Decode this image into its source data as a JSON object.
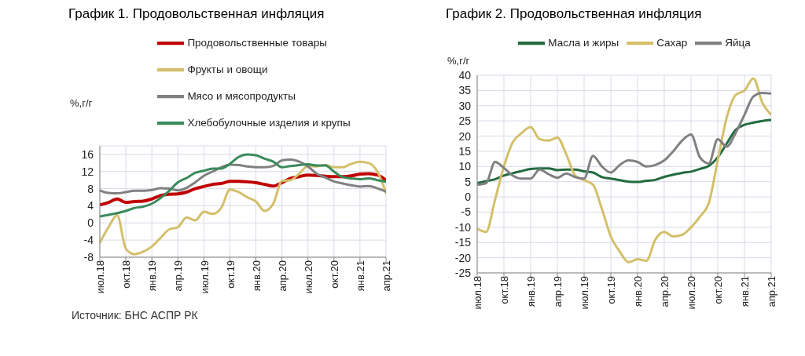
{
  "chart_data": [
    {
      "type": "line",
      "title": "График 1. Продовольственная инфляция",
      "ylabel": "%,г/г",
      "categories": [
        "июл.18",
        null,
        null,
        "окт.18",
        null,
        null,
        "янв.19",
        null,
        null,
        "апр.19",
        null,
        null,
        "июл.19",
        null,
        null,
        "окт.19",
        null,
        null,
        "янв.20",
        null,
        null,
        "апр.20",
        null,
        null,
        "июл.20",
        null,
        null,
        "окт.20",
        null,
        null,
        "янв.21",
        null,
        null,
        "апр.21"
      ],
      "series": [
        {
          "name": "Продовольственные товары",
          "color": "#c00000",
          "values": [
            4.2,
            4.8,
            5.6,
            4.8,
            5.0,
            5.1,
            5.6,
            6.4,
            6.7,
            6.8,
            7.2,
            8.0,
            8.5,
            9.0,
            9.2,
            9.7,
            9.7,
            9.6,
            9.4,
            9.0,
            8.6,
            9.4,
            10.4,
            10.8,
            11.2,
            11.1,
            10.9,
            10.8,
            10.8,
            11.0,
            11.4,
            11.5,
            11.2,
            10.0
          ]
        },
        {
          "name": "Фрукты и овощи",
          "color": "#d4bf6a",
          "values": [
            -4.6,
            -1.0,
            1.8,
            -6.0,
            -7.3,
            -6.7,
            -5.5,
            -3.5,
            -1.5,
            -1.0,
            1.3,
            0.6,
            2.6,
            2.1,
            3.5,
            7.8,
            7.2,
            6.0,
            5.0,
            2.8,
            4.5,
            9.8,
            10.0,
            11.5,
            13.3,
            13.2,
            13.5,
            13.0,
            13.0,
            13.8,
            14.3,
            14.0,
            12.0,
            7.0
          ]
        },
        {
          "name": "Мясо и мясопродукты",
          "color": "#808080",
          "values": [
            7.6,
            7.0,
            6.9,
            7.2,
            7.5,
            7.5,
            7.7,
            8.1,
            8.0,
            7.6,
            8.2,
            9.5,
            11.0,
            12.0,
            13.0,
            13.6,
            13.5,
            13.2,
            13.0,
            13.0,
            13.3,
            14.6,
            14.8,
            14.3,
            13.2,
            11.5,
            10.6,
            9.7,
            9.2,
            8.8,
            8.5,
            8.6,
            8.1,
            7.3
          ]
        },
        {
          "name": "Хлебобулочные изделия и крупы",
          "color": "#3a8a5c",
          "values": [
            1.5,
            1.9,
            2.3,
            2.8,
            3.5,
            3.8,
            4.5,
            5.8,
            7.5,
            9.5,
            10.5,
            11.7,
            12.2,
            12.7,
            12.7,
            13.8,
            15.4,
            16.0,
            15.8,
            15.0,
            14.3,
            13.0,
            13.3,
            13.5,
            13.7,
            13.4,
            13.4,
            12.0,
            10.7,
            10.4,
            10.2,
            10.4,
            10.0,
            9.6
          ]
        }
      ],
      "ylim": [
        -8,
        18
      ],
      "yticks": [
        -8,
        -4,
        0,
        4,
        8,
        12,
        16
      ],
      "grid": true,
      "legend": "top",
      "marker": "none",
      "line_style": "solid",
      "annotations": [
        "Источник: БНС АСПР РК"
      ]
    },
    {
      "type": "line",
      "title": "График 2. Продовольственная инфляция",
      "ylabel": "%,г/г",
      "categories": [
        "июл.18",
        null,
        null,
        "окт.18",
        null,
        null,
        "янв.19",
        null,
        null,
        "апр.19",
        null,
        null,
        "июл.19",
        null,
        null,
        "окт.19",
        null,
        null,
        "янв.20",
        null,
        null,
        "апр.20",
        null,
        null,
        "июл.20",
        null,
        null,
        "окт.20",
        null,
        null,
        "янв.21",
        null,
        null,
        "апр.21"
      ],
      "series": [
        {
          "name": "Масла и жиры",
          "color": "#236b3f",
          "values": [
            4.5,
            5.2,
            5.8,
            7.0,
            7.8,
            8.5,
            9.2,
            9.4,
            9.4,
            8.8,
            9.0,
            9.0,
            8.4,
            8.0,
            6.5,
            6.0,
            5.5,
            5.0,
            4.9,
            5.3,
            5.6,
            6.6,
            7.3,
            7.9,
            8.3,
            9.2,
            10.2,
            13.0,
            17.5,
            22.0,
            23.7,
            24.4,
            25.0,
            25.3
          ]
        },
        {
          "name": "Сахар",
          "color": "#d4bf6a",
          "values": [
            -10.5,
            -11.5,
            -1,
            10,
            18,
            21,
            23,
            19,
            18.5,
            19.5,
            14,
            7,
            5.5,
            4,
            -4,
            -13,
            -18,
            -21.5,
            -20.5,
            -21,
            -14,
            -11.5,
            -13,
            -12.5,
            -10,
            -6.5,
            -2,
            12,
            26,
            33.5,
            35,
            39,
            31,
            27
          ]
        },
        {
          "name": "Яйца",
          "color": "#808080",
          "values": [
            4,
            4.5,
            11.5,
            9.5,
            7,
            6,
            6,
            9,
            7.5,
            6.3,
            7.7,
            6.5,
            6,
            13.5,
            10,
            8,
            10.5,
            12,
            11.5,
            10,
            10.5,
            12,
            15,
            18.5,
            20.5,
            13,
            11,
            19,
            16.5,
            21,
            27,
            33,
            34.2,
            34
          ]
        }
      ],
      "ylim": [
        -25,
        40
      ],
      "yticks": [
        -25,
        -20,
        -15,
        -10,
        -5,
        0,
        5,
        10,
        15,
        20,
        25,
        30,
        35,
        40
      ],
      "grid": true,
      "legend": "top",
      "marker": "none",
      "line_style": "solid"
    }
  ]
}
